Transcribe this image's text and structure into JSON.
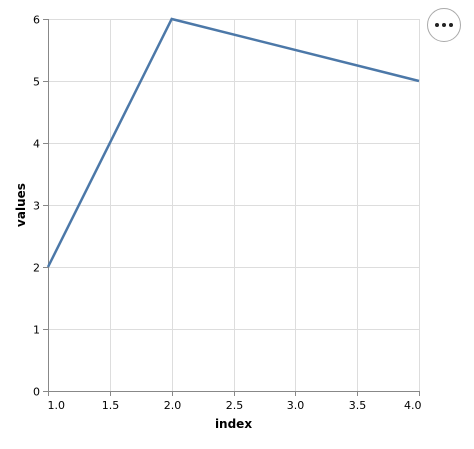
{
  "chart_data": {
    "type": "line",
    "x": [
      1.0,
      2.0,
      4.0
    ],
    "series": [
      {
        "values": [
          2,
          6,
          5
        ],
        "color": "#4c78a8"
      }
    ],
    "xlabel": "index",
    "ylabel": "values",
    "xlim": [
      1.0,
      4.0
    ],
    "ylim": [
      0,
      6
    ],
    "xticks": [
      "1.0",
      "1.5",
      "2.0",
      "2.5",
      "3.0",
      "3.5",
      "4.0"
    ],
    "yticks": [
      "0",
      "1",
      "2",
      "3",
      "4",
      "5",
      "6"
    ],
    "grid": true,
    "gridColor": "#dddddd",
    "axisColor": "#888888"
  },
  "toolbar": {
    "menu_icon": "more-horizontal-icon"
  }
}
